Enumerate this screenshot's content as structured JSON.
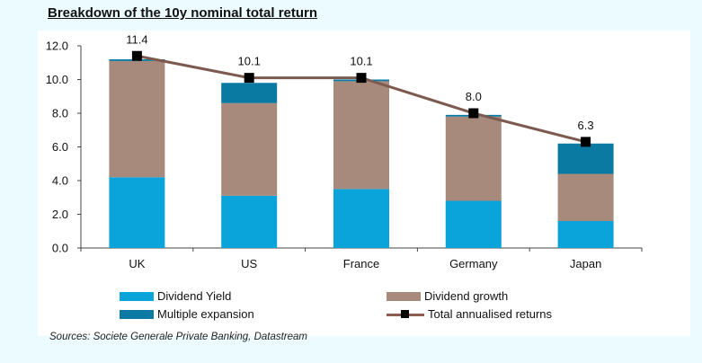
{
  "title": "Breakdown of the 10y nominal total return",
  "source": "Sources: Societe Generale Private Banking, Datastream",
  "colors": {
    "dividend_yield": "#0aa3da",
    "dividend_growth": "#a88a7c",
    "multiple_expansion": "#0a7aa3",
    "total_line": "#7d5a4f",
    "marker": "#000000"
  },
  "chart_data": {
    "type": "bar",
    "stacked": true,
    "categories": [
      "UK",
      "US",
      "France",
      "Germany",
      "Japan"
    ],
    "series": [
      {
        "name": "Dividend Yield",
        "values": [
          4.2,
          3.1,
          3.5,
          2.8,
          1.6
        ]
      },
      {
        "name": "Dividend growth",
        "values": [
          6.9,
          5.5,
          6.4,
          5.0,
          2.8
        ]
      },
      {
        "name": "Multiple expansion",
        "values": [
          0.1,
          1.2,
          0.1,
          0.1,
          1.8
        ]
      }
    ],
    "line_series": {
      "name": "Total annualised returns",
      "values": [
        11.4,
        10.1,
        10.1,
        8.0,
        6.3
      ]
    },
    "data_labels": [
      "11.4",
      "10.1",
      "10.1",
      "8.0",
      "6.3"
    ],
    "ylim": [
      0,
      12
    ],
    "yticks": [
      "0.0",
      "2.0",
      "4.0",
      "6.0",
      "8.0",
      "10.0",
      "12.0"
    ],
    "grid": false,
    "legend_position": "bottom"
  }
}
